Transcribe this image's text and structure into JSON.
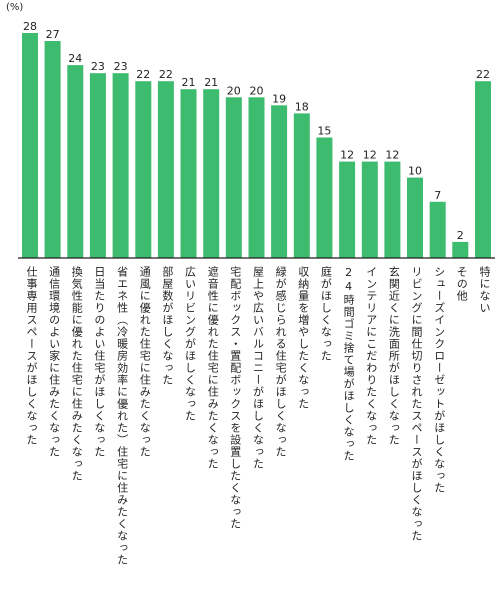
{
  "chart_data": {
    "type": "bar",
    "unit_label": "(%)",
    "ylim": [
      0,
      30
    ],
    "grid": false,
    "categories": [
      "仕事専用スペースがほしくなった",
      "通信環境のよい家に住みたくなった",
      "換気性能に優れた住宅に住みたくなった",
      "日当たりのよい住宅がほしくなった",
      "省エネ性（冷暖房効率に優れた）住宅に住みたくなった",
      "通風に優れた住宅に住みたくなった",
      "部屋数がほしくなった",
      "広いリビングがほしくなった",
      "遮音性に優れた住宅に住みたくなった",
      "宅配ボックス・置配ボックスを設置したくなった",
      "屋上や広いバルコニーがほしくなった",
      "緑が感じられる住宅がほしくなった",
      "収納量を増やしたくなった",
      "庭がほしくなった",
      "24時間ゴミ捨て場がほしくなった",
      "インテリアにこだわりたくなった",
      "玄関近くに洗面所がほしくなった",
      "リビングに間仕切りされたスペースがほしくなった",
      "シューズインクローゼットがほしくなった",
      "その他",
      "特にない"
    ],
    "values": [
      28,
      27,
      24,
      23,
      23,
      22,
      22,
      21,
      21,
      20,
      20,
      19,
      18,
      15,
      12,
      12,
      12,
      10,
      7,
      2,
      22
    ],
    "colors": {
      "bar": "#3dbb6e",
      "text": "#231f20"
    }
  }
}
